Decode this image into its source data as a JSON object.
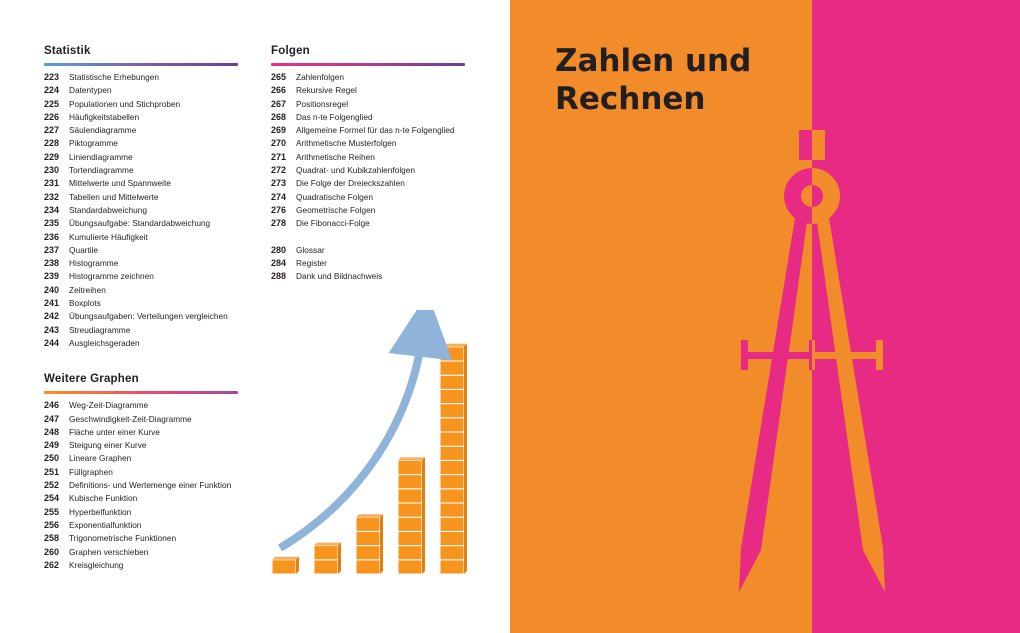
{
  "colors": {
    "orange": "#f28c2a",
    "pink": "#e72a83",
    "cube": "#f7941d",
    "arrow": "#8fb3d9"
  },
  "sections": {
    "statistik": {
      "title": "Statistik",
      "items": [
        {
          "page": "223",
          "title": "Statistische Erhebungen"
        },
        {
          "page": "224",
          "title": "Datentypen"
        },
        {
          "page": "225",
          "title": "Populationen und Stichproben"
        },
        {
          "page": "226",
          "title": "Häufigkeitstabellen"
        },
        {
          "page": "227",
          "title": "Säulendiagramme"
        },
        {
          "page": "228",
          "title": "Piktogramme"
        },
        {
          "page": "229",
          "title": "Liniendiagramme"
        },
        {
          "page": "230",
          "title": "Tortendiagramme"
        },
        {
          "page": "231",
          "title": "Mittelwerte und Spannweite"
        },
        {
          "page": "232",
          "title": "Tabellen und Mittelwerte"
        },
        {
          "page": "234",
          "title": "Standardabweichung"
        },
        {
          "page": "235",
          "title": "Übungsaufgabe: Standardabweichung"
        },
        {
          "page": "236",
          "title": "Kumulierte Häufigkeit"
        },
        {
          "page": "237",
          "title": "Quartile"
        },
        {
          "page": "238",
          "title": "Histogramme"
        },
        {
          "page": "239",
          "title": "Histogramme zeichnen"
        },
        {
          "page": "240",
          "title": "Zeitreihen"
        },
        {
          "page": "241",
          "title": "Boxplots"
        },
        {
          "page": "242",
          "title": "Übungsaufgaben: Verteilungen vergleichen"
        },
        {
          "page": "243",
          "title": "Streudiagramme"
        },
        {
          "page": "244",
          "title": "Ausgleichsgeraden"
        }
      ]
    },
    "graphen": {
      "title": "Weitere Graphen",
      "items": [
        {
          "page": "246",
          "title": "Weg-Zeit-Diagramme"
        },
        {
          "page": "247",
          "title": "Geschwindigkeit-Zeit-Diagramme"
        },
        {
          "page": "248",
          "title": "Fläche unter einer Kurve"
        },
        {
          "page": "249",
          "title": "Steigung einer Kurve"
        },
        {
          "page": "250",
          "title": "Lineare Graphen"
        },
        {
          "page": "251",
          "title": "Füllgraphen"
        },
        {
          "page": "252",
          "title": "Definitions- und Wertemenge einer Funktion"
        },
        {
          "page": "254",
          "title": "Kubische Funktion"
        },
        {
          "page": "255",
          "title": "Hyperbelfunktion"
        },
        {
          "page": "256",
          "title": "Exponentialfunktion"
        },
        {
          "page": "258",
          "title": "Trigonometrische Funktionen"
        },
        {
          "page": "260",
          "title": "Graphen verschieben"
        },
        {
          "page": "262",
          "title": "Kreisgleichung"
        }
      ]
    },
    "folgen": {
      "title": "Folgen",
      "items": [
        {
          "page": "265",
          "title": "Zahlenfolgen"
        },
        {
          "page": "266",
          "title": "Rekursive Regel"
        },
        {
          "page": "267",
          "title": "Positionsregel"
        },
        {
          "page": "268",
          "title": "Das n-te Folgenglied"
        },
        {
          "page": "269",
          "title": "Allgemeine Formel für das n-te Folgenglied"
        },
        {
          "page": "270",
          "title": "Arithmetische Musterfolgen"
        },
        {
          "page": "271",
          "title": "Arithmetische Reihen"
        },
        {
          "page": "272",
          "title": "Quadrat- und Kubikzahlenfolgen"
        },
        {
          "page": "273",
          "title": "Die Folge der Dreieckszahlen"
        },
        {
          "page": "274",
          "title": "Quadratische Folgen"
        },
        {
          "page": "276",
          "title": "Geometrische Folgen"
        },
        {
          "page": "278",
          "title": "Die Fibonacci-Folge"
        }
      ]
    },
    "anhang": {
      "items": [
        {
          "page": "280",
          "title": "Glossar"
        },
        {
          "page": "284",
          "title": "Register"
        },
        {
          "page": "288",
          "title": "Dank und Bildnachweis"
        }
      ]
    }
  },
  "chapter": {
    "line1": "Zahlen und",
    "line2": "Rechnen"
  },
  "illustration": {
    "stack_heights": [
      1,
      2,
      4,
      8,
      16
    ]
  },
  "icons": {
    "compass": "drawing-compass-icon",
    "arrow": "growth-arrow-icon"
  }
}
